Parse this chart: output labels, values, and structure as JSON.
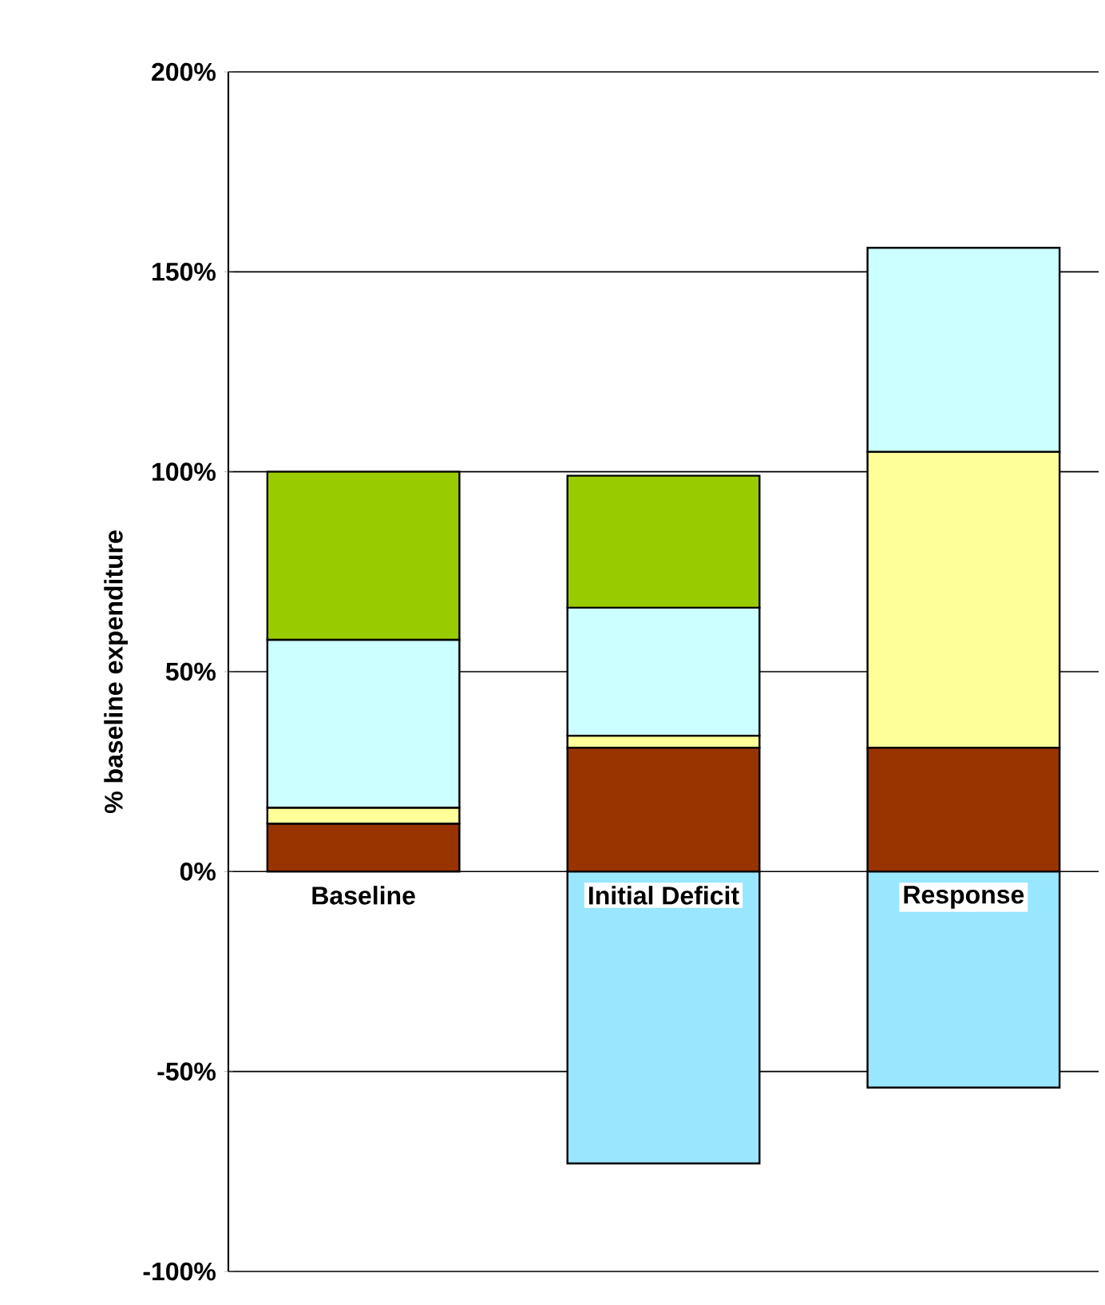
{
  "chart_data": {
    "type": "bar",
    "stacked": true,
    "ylabel": "% baseline expenditure",
    "categories": [
      "Baseline",
      "Initial Deficit",
      "Response"
    ],
    "series": [
      {
        "color": "#993300",
        "values": [
          12,
          31,
          31
        ]
      },
      {
        "color": "#ffff99",
        "values": [
          4,
          3,
          74
        ]
      },
      {
        "color": "#ccffff",
        "values": [
          42,
          32,
          51
        ]
      },
      {
        "color": "#99cc00",
        "values": [
          42,
          33,
          null
        ]
      },
      {
        "color": "#99e6ff",
        "values": [
          null,
          -73,
          -54
        ]
      }
    ],
    "ylim": [
      -100,
      200
    ],
    "yticks": [
      {
        "value": -100,
        "label": "-100%"
      },
      {
        "value": -50,
        "label": "-50%"
      },
      {
        "value": 0,
        "label": "0%"
      },
      {
        "value": 50,
        "label": "50%"
      },
      {
        "value": 100,
        "label": "100%"
      },
      {
        "value": 150,
        "label": "150%"
      },
      {
        "value": 200,
        "label": "200%"
      }
    ],
    "grid": "y"
  }
}
